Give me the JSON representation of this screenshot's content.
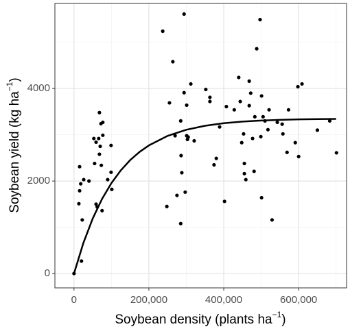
{
  "chart_data": {
    "type": "scatter",
    "x_label": {
      "text": "Soybean density (plants ha",
      "superscript": "−1",
      "suffix": ")"
    },
    "y_label": {
      "text": "Soybean yield (kg ha",
      "superscript": "−1",
      "suffix": ")"
    },
    "xlim": [
      -51000,
      728000
    ],
    "ylim": [
      -310,
      5840
    ],
    "xticks": [
      0,
      {
        "value": 200000,
        "label": "200,000"
      },
      {
        "value": 400000,
        "label": "400,000"
      },
      {
        "value": 600000,
        "label": "600,000"
      }
    ],
    "yticks": [
      0,
      2000,
      4000
    ],
    "xminor": [
      100000,
      300000,
      500000,
      700000
    ],
    "yminor": [
      1000,
      3000,
      5000
    ],
    "grid": true,
    "series": [
      {
        "color": "#000000",
        "x": [
          0,
          15000,
          18000,
          15000,
          13000,
          26000,
          22000,
          20000,
          40000,
          55000,
          53000,
          59000,
          59000,
          68000,
          72000,
          77000,
          66000,
          70000,
          68000,
          73000,
          77000,
          75000,
          62000,
          90000,
          99000,
          101000,
          99000,
          237000,
          248000,
          255000,
          264000,
          270000,
          275000,
          285000,
          288000,
          286000,
          285000,
          294000,
          294000,
          297000,
          301000,
          305000,
          303000,
          301000,
          312000,
          321000,
          352000,
          363000,
          363000,
          374000,
          380000,
          389000,
          402000,
          407000,
          428000,
          440000,
          444000,
          448000,
          453000,
          455000,
          459000,
          455000,
          468000,
          468000,
          472000,
          477000,
          481000,
          483000,
          488000,
          497000,
          501000,
          501000,
          505000,
          499000,
          510000,
          518000,
          521000,
          529000,
          543000,
          556000,
          558000,
          569000,
          573000,
          591000,
          598000,
          609000,
          600000,
          650000,
          683000,
          701000
        ],
        "values": [
          0,
          2310,
          1940,
          1790,
          1510,
          2030,
          1160,
          270,
          2000,
          2380,
          2920,
          2840,
          1500,
          3480,
          3240,
          3270,
          2920,
          2750,
          2580,
          2340,
          2990,
          1360,
          1440,
          2030,
          2190,
          1820,
          2770,
          5240,
          1450,
          3690,
          4580,
          2980,
          1690,
          1080,
          2180,
          2550,
          3300,
          5610,
          3910,
          1760,
          2980,
          2950,
          2900,
          3640,
          4100,
          2870,
          3980,
          3810,
          3720,
          2350,
          2490,
          3170,
          1560,
          3610,
          3540,
          4240,
          3720,
          2830,
          3020,
          2380,
          2030,
          2160,
          4160,
          3630,
          3900,
          2920,
          2210,
          3390,
          4860,
          5490,
          3840,
          1640,
          3390,
          2960,
          3300,
          3110,
          3540,
          1160,
          3270,
          3230,
          3020,
          2620,
          3540,
          2830,
          4040,
          4100,
          2530,
          3100,
          3300,
          2610
        ]
      }
    ],
    "fit": {
      "type": "line",
      "color": "#000000",
      "x": [
        0,
        25000,
        50000,
        75000,
        100000,
        125000,
        150000,
        175000,
        200000,
        250000,
        300000,
        350000,
        400000,
        450000,
        500000,
        550000,
        600000,
        650000,
        700000
      ],
      "values": [
        0,
        659,
        1189,
        1615,
        1956,
        2231,
        2452,
        2629,
        2770,
        2976,
        3109,
        3195,
        3250,
        3285,
        3308,
        3323,
        3333,
        3339,
        3343
      ]
    }
  }
}
